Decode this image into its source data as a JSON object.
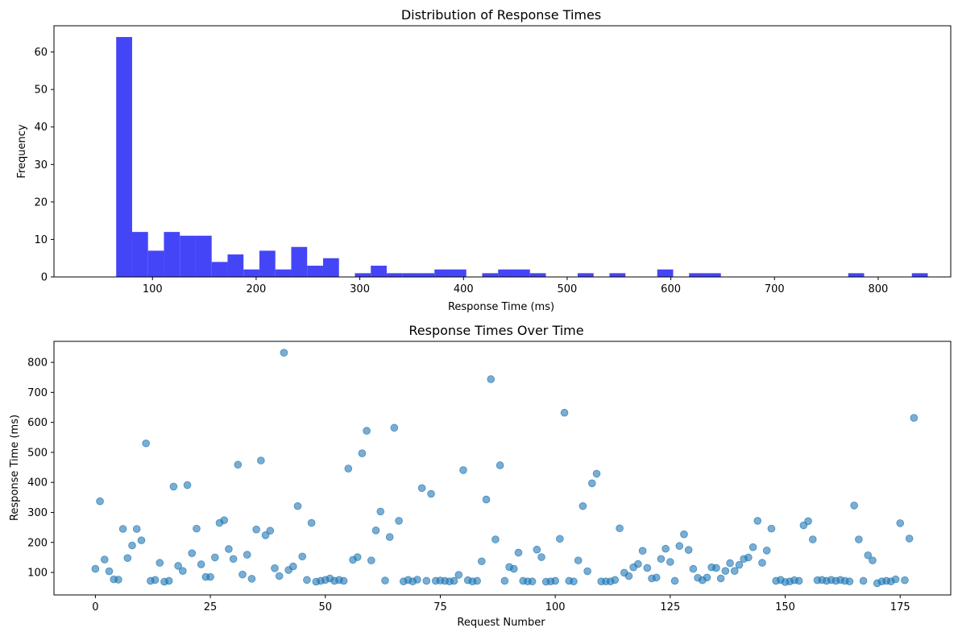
{
  "chart_data": [
    {
      "type": "bar",
      "title": "Distribution of Response Times",
      "xlabel": "Response Time (ms)",
      "ylabel": "Frequency",
      "xlim": [
        5,
        870
      ],
      "ylim": [
        0,
        67
      ],
      "xticks": [
        100,
        200,
        300,
        400,
        500,
        600,
        700,
        800
      ],
      "yticks": [
        0,
        10,
        20,
        30,
        40,
        50,
        60
      ],
      "bin_start": 65,
      "bin_width": 15.35,
      "counts": [
        64,
        12,
        7,
        12,
        11,
        11,
        4,
        6,
        2,
        7,
        2,
        8,
        3,
        5,
        0,
        1,
        3,
        1,
        1,
        1,
        2,
        2,
        0,
        1,
        2,
        2,
        1,
        0,
        0,
        1,
        0,
        1,
        0,
        0,
        2,
        0,
        1,
        1,
        0,
        0,
        0,
        0,
        0,
        0,
        0,
        0,
        1,
        0,
        0,
        0,
        1
      ],
      "color": "#4545f8",
      "grid": false
    },
    {
      "type": "scatter",
      "title": "Response Times Over Time",
      "xlabel": "Request Number",
      "ylabel": "Response Time (ms)",
      "xlim": [
        -9,
        186
      ],
      "ylim": [
        25,
        870
      ],
      "xticks": [
        0,
        25,
        50,
        75,
        100,
        125,
        150,
        175
      ],
      "yticks": [
        100,
        200,
        300,
        400,
        500,
        600,
        700,
        800
      ],
      "color": "#1f77b4",
      "alpha": 0.6,
      "grid": false,
      "y": [
        112,
        337,
        143,
        104,
        77,
        76,
        245,
        148,
        190,
        245,
        207,
        530,
        72,
        75,
        132,
        69,
        72,
        386,
        122,
        105,
        391,
        164,
        246,
        127,
        85,
        85,
        150,
        265,
        274,
        178,
        145,
        459,
        93,
        159,
        79,
        243,
        473,
        224,
        239,
        114,
        88,
        832,
        108,
        120,
        321,
        153,
        75,
        265,
        69,
        72,
        75,
        80,
        72,
        75,
        72,
        446,
        142,
        151,
        497,
        572,
        140,
        240,
        303,
        73,
        218,
        582,
        272,
        70,
        75,
        70,
        76,
        381,
        72,
        362,
        72,
        73,
        72,
        70,
        72,
        92,
        441,
        74,
        70,
        72,
        137,
        343,
        744,
        210,
        457,
        72,
        118,
        112,
        166,
        72,
        70,
        70,
        176,
        151,
        69,
        70,
        72,
        212,
        632,
        72,
        70,
        140,
        321,
        104,
        397,
        429,
        70,
        70,
        70,
        75,
        247,
        99,
        88,
        117,
        128,
        172,
        115,
        80,
        83,
        145,
        179,
        135,
        72,
        188,
        227,
        175,
        112,
        82,
        74,
        83,
        117,
        115,
        80,
        105,
        131,
        105,
        125,
        145,
        150,
        184,
        272,
        132,
        173,
        246,
        72,
        75,
        68,
        70,
        74,
        72,
        257,
        271,
        210,
        74,
        75,
        72,
        75,
        72,
        75,
        72,
        70,
        323,
        210,
        72,
        157,
        140,
        64,
        70,
        72,
        70,
        77,
        264,
        74,
        213,
        615
      ],
      "x_start": 0,
      "x_step": 1
    }
  ]
}
